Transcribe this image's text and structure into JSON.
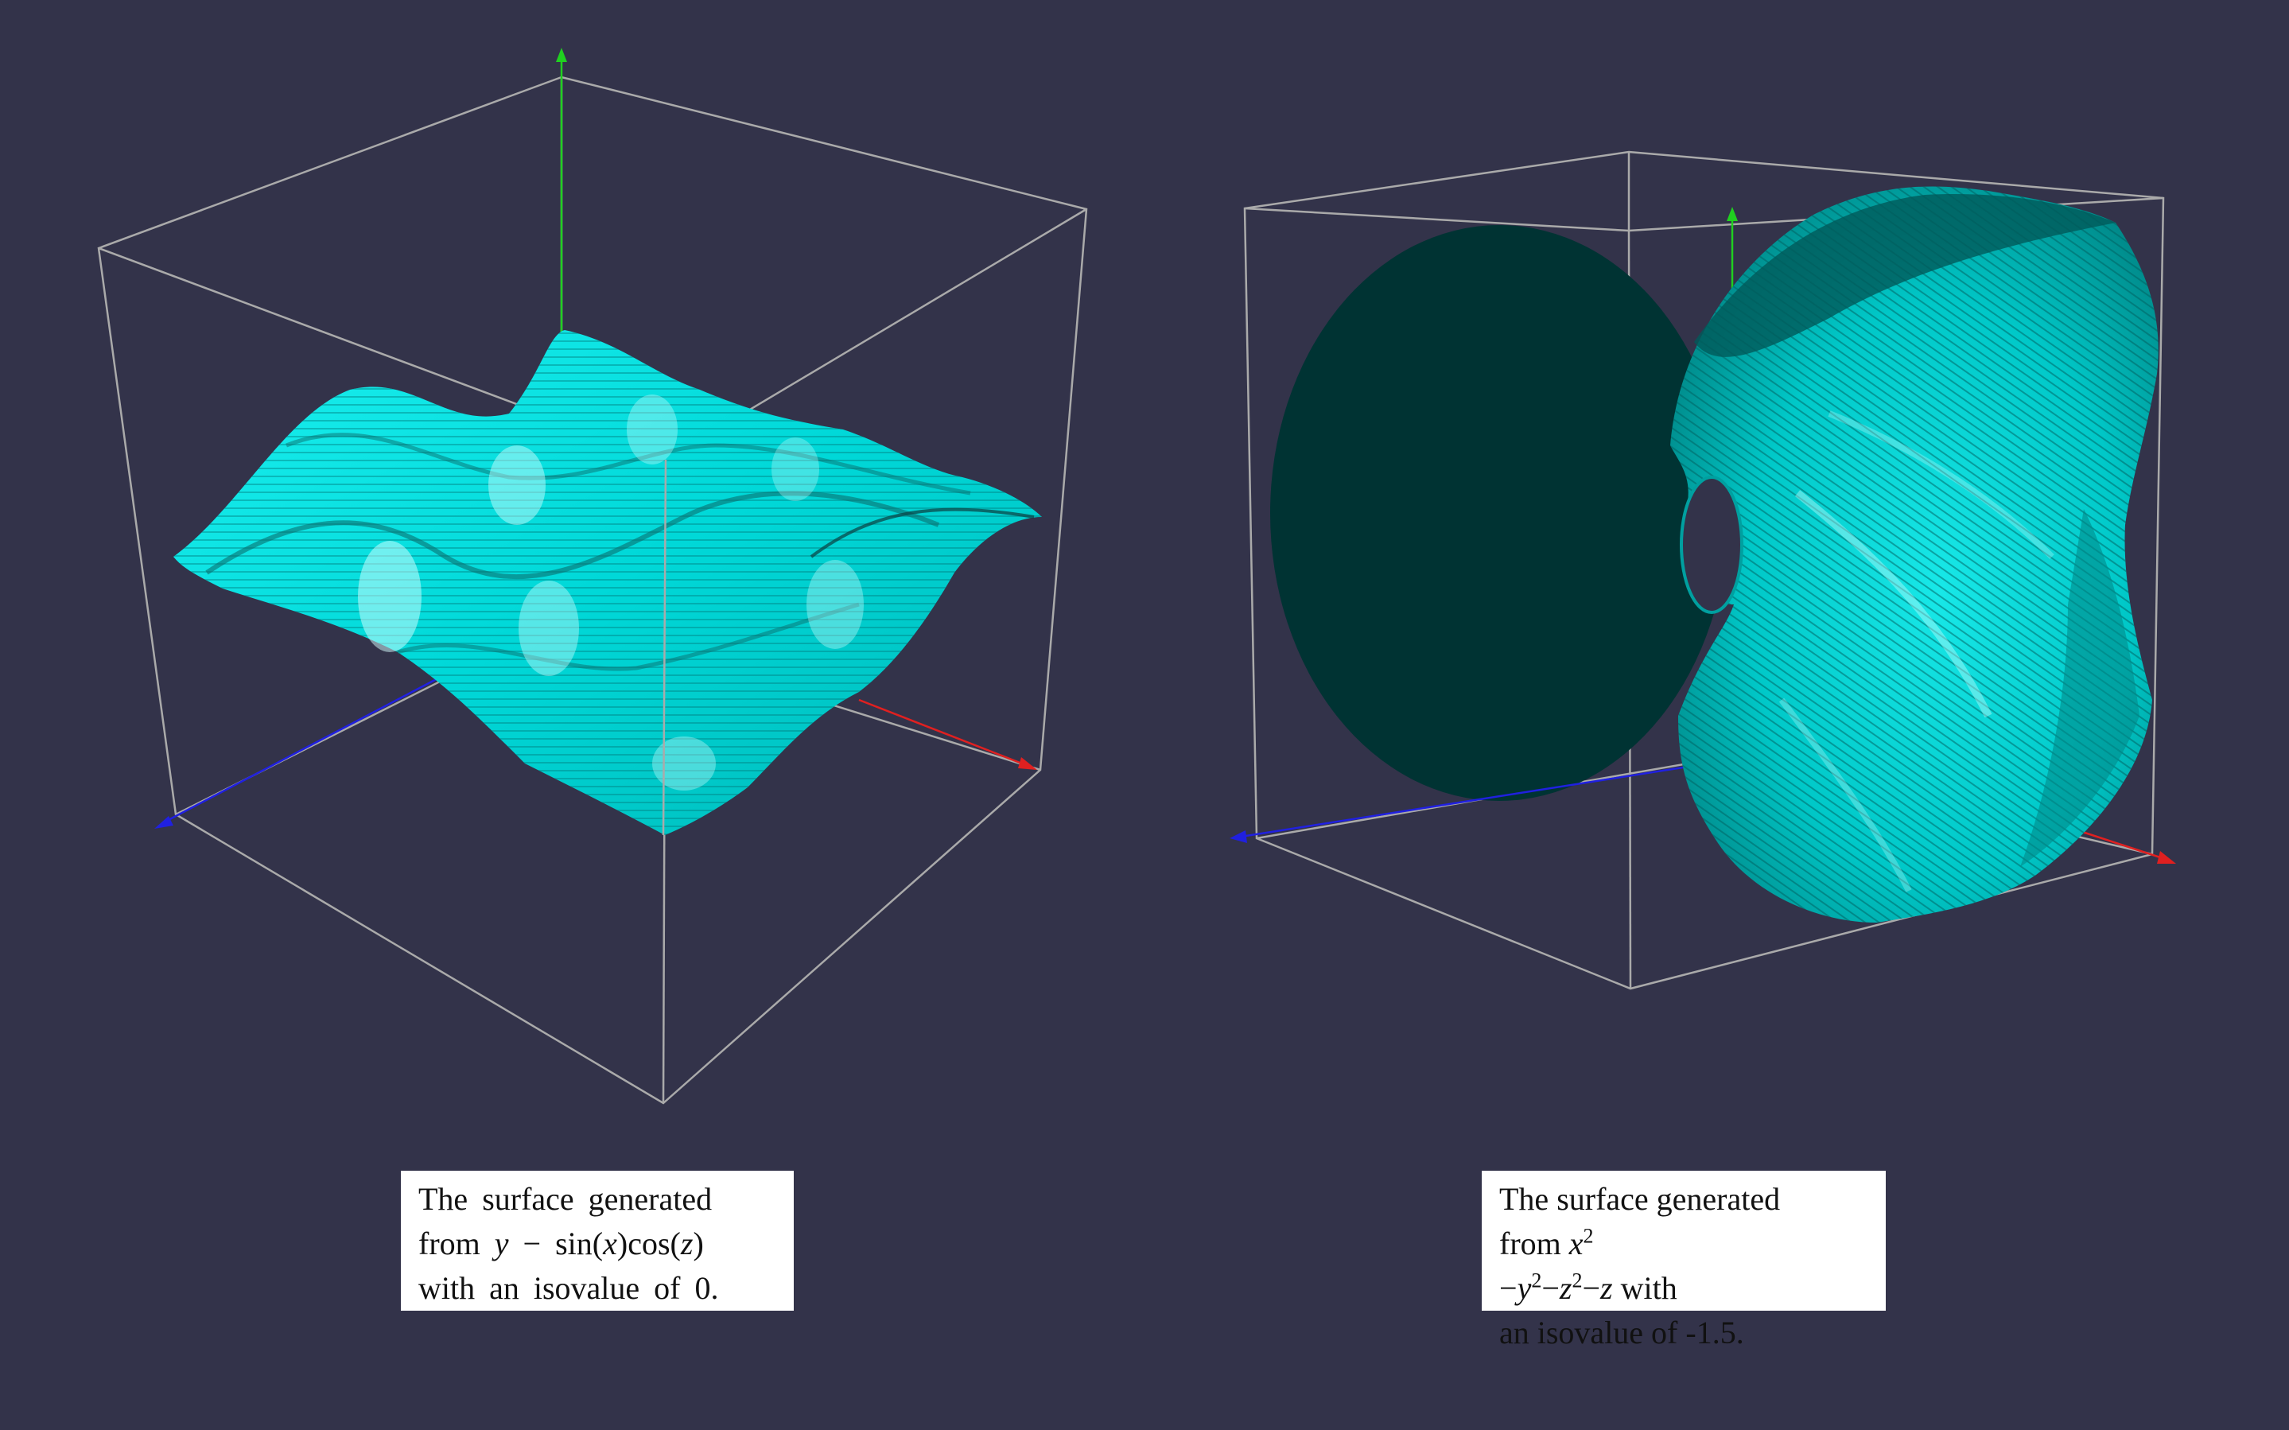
{
  "colors": {
    "background": "#33334a",
    "surface": "#00e0e0",
    "surface_dark": "#003333",
    "box_edge": "#aaaaaa",
    "axis_x": "#e02020",
    "axis_y": "#20d020",
    "axis_z": "#2020e0"
  },
  "figures": [
    {
      "caption": {
        "line1": "The surface generated",
        "line2_prefix": "from",
        "expr_var_y": "y",
        "expr_minus": " − ",
        "expr_sin": "sin",
        "expr_arg_x": "x",
        "expr_cos": "cos",
        "expr_arg_z": "z",
        "line3": "with an isovalue of 0."
      }
    },
    {
      "caption": {
        "line1": "The surface generated",
        "line2_prefix": "from",
        "t_x": "x",
        "t_y": "y",
        "t_z": "z",
        "t_z2": "z",
        "sup2": "2",
        "op_minus": "−",
        "line2_suffix": "with",
        "line3": "an isovalue of -1.5."
      }
    }
  ]
}
